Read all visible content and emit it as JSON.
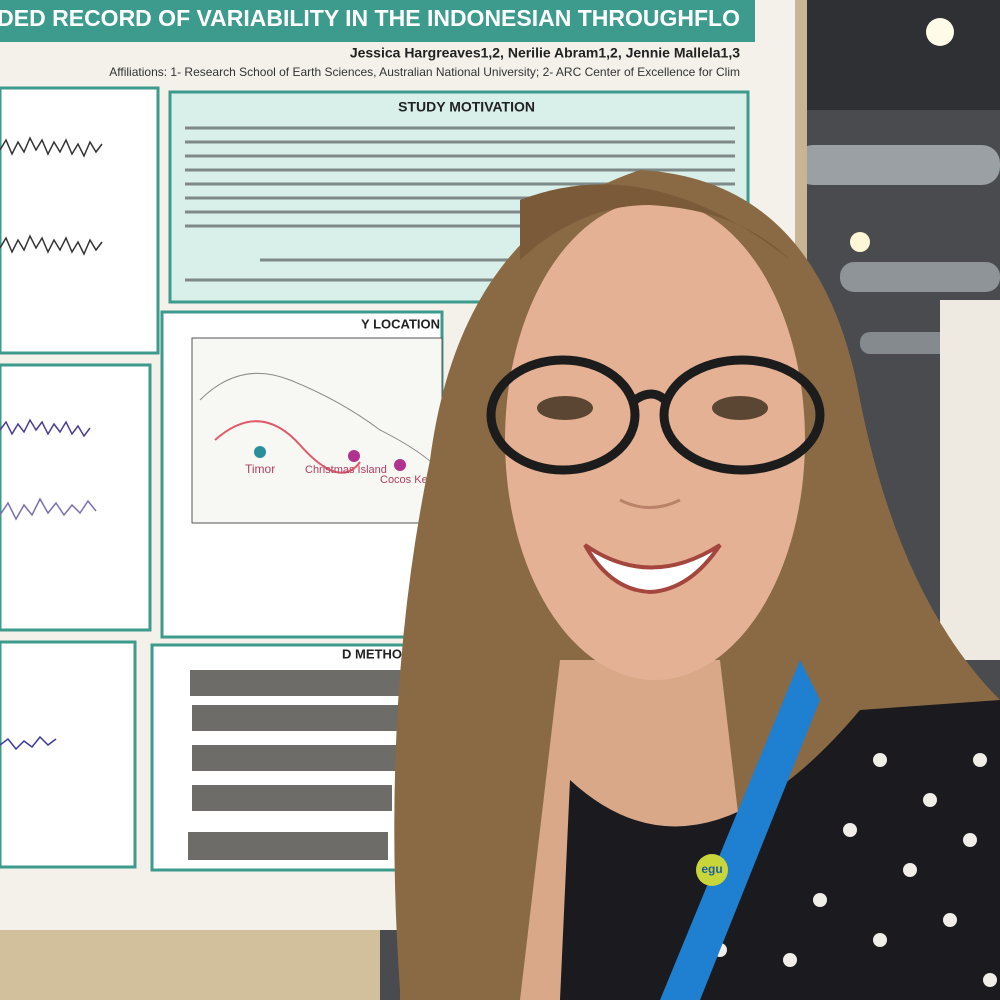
{
  "poster": {
    "title": "AN EXTENDED RECORD OF VARIABILITY IN THE INDONESIAN THROUGHFLO",
    "authors": "Jessica Hargreaves1,2, Nerilie Abram1,2, Jennie Mallela1,3",
    "affiliations": "Affiliations: 1- Research School of Earth Sciences, Australian National University; 2- ARC Center of Excellence for Clim",
    "sections": [
      "STUDY MOTIVATION",
      "Y LOCATION",
      "D METHODS"
    ],
    "map_labels": [
      "Timor",
      "Christmas Island",
      "Cocos Keeling Island"
    ]
  },
  "lanyard": {
    "text": "egu"
  }
}
